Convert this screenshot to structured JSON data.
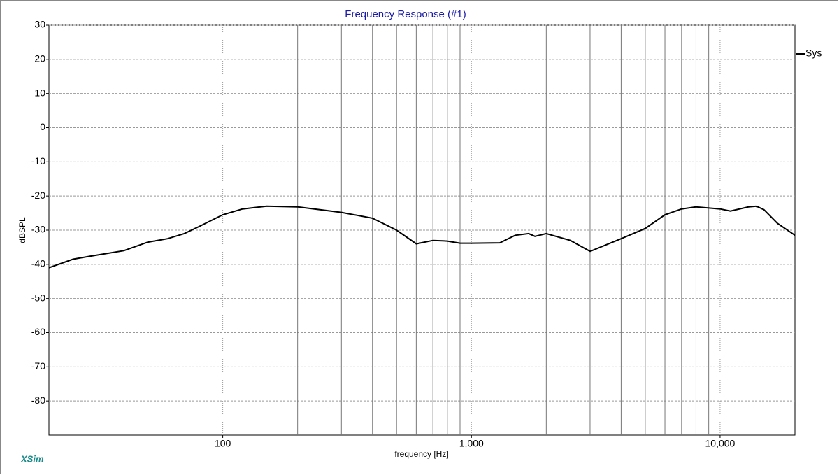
{
  "chart_data": {
    "type": "line",
    "title": "Frequency Response (#1)",
    "x_label": "frequency [Hz]",
    "y_label": "dBSPL",
    "watermark": "XSim",
    "x": [
      20,
      25,
      30,
      40,
      50,
      60,
      70,
      80,
      100,
      120,
      150,
      200,
      300,
      400,
      500,
      600,
      700,
      800,
      900,
      1000,
      1300,
      1500,
      1700,
      1800,
      2000,
      2500,
      3000,
      4000,
      5000,
      6000,
      7000,
      8000,
      10000,
      11000,
      13000,
      14000,
      15000,
      17000,
      20000
    ],
    "series": [
      {
        "name": "Sys",
        "color": "#000000",
        "values": [
          -41,
          -38.5,
          -37.5,
          -36,
          -33.5,
          -32.5,
          -31,
          -29,
          -25.5,
          -23.8,
          -23,
          -23.2,
          -24.8,
          -26.5,
          -30,
          -34,
          -33,
          -33.2,
          -33.8,
          -33.8,
          -33.7,
          -31.5,
          -31,
          -31.8,
          -31,
          -33,
          -36.2,
          -32.5,
          -29.5,
          -25.5,
          -23.8,
          -23.2,
          -23.8,
          -24.4,
          -23.2,
          -23,
          -24,
          -28,
          -31.5
        ]
      }
    ],
    "xlim": [
      20,
      20000
    ],
    "x_log": true,
    "xticks": [
      100,
      {
        "value": 1000,
        "label": "1,000"
      },
      {
        "value": 10000,
        "label": "10,000"
      }
    ],
    "xminor": [
      200,
      300,
      400,
      500,
      600,
      700,
      800,
      900,
      2000,
      3000,
      4000,
      5000,
      6000,
      7000,
      8000,
      9000
    ],
    "ylim": [
      -90,
      30
    ],
    "yticks": [
      30,
      20,
      10,
      0,
      -10,
      -20,
      -30,
      -40,
      -50,
      -60,
      -70,
      -80
    ],
    "grid": true,
    "legend": "right"
  }
}
